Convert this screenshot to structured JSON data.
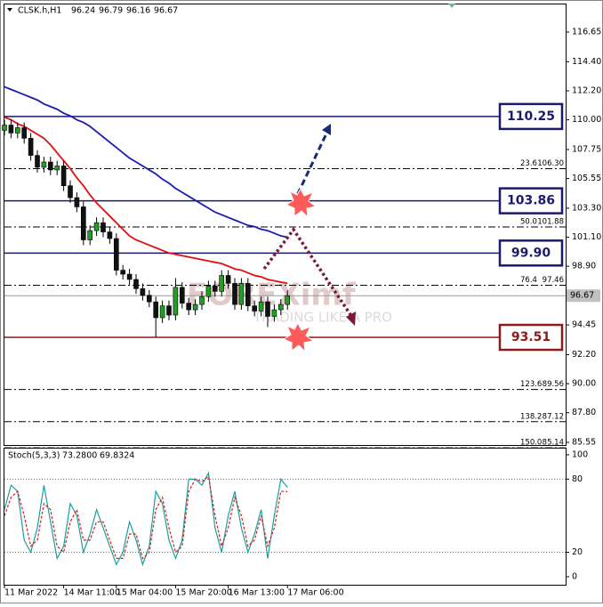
{
  "chart_data": [
    {
      "type": "candlestick",
      "symbol": "CLSK.h,H1",
      "ohlc": [
        96.24,
        96.79,
        96.16,
        96.67
      ],
      "categories": [
        "11 Mar 2022",
        null,
        null,
        null,
        null,
        null,
        null,
        null,
        null,
        "14 Mar 11:00",
        null,
        null,
        null,
        null,
        null,
        null,
        null,
        "15 Mar 04:00",
        null,
        null,
        null,
        null,
        null,
        null,
        null,
        null,
        "15 Mar 20:00",
        null,
        null,
        null,
        null,
        null,
        null,
        null,
        "16 Mar 13:00",
        null,
        null,
        null,
        null,
        null,
        null,
        null,
        null,
        "17 Mar 06:00"
      ],
      "open": [
        109.2,
        109.6,
        109.0,
        109.4,
        108.6,
        107.3,
        106.4,
        106.8,
        106.2,
        106.5,
        105.0,
        104.1,
        103.4,
        100.9,
        101.6,
        102.2,
        101.5,
        101.0,
        98.6,
        98.3,
        97.9,
        97.2,
        96.7,
        96.2,
        95.0,
        95.9,
        95.2,
        97.3,
        96.1,
        95.6,
        96.0,
        96.6,
        97.4,
        97.0,
        98.2,
        97.6,
        96.0,
        97.6,
        95.9,
        95.5,
        96.2,
        95.1,
        95.6,
        96.0
      ],
      "high": [
        110.0,
        110.0,
        109.8,
        109.8,
        109.0,
        107.7,
        107.2,
        107.2,
        106.9,
        106.9,
        105.4,
        104.5,
        103.8,
        102.0,
        102.6,
        102.6,
        101.9,
        101.4,
        99.0,
        98.7,
        98.3,
        97.6,
        97.1,
        96.6,
        96.3,
        96.3,
        98.0,
        97.7,
        96.5,
        96.4,
        97.0,
        97.8,
        97.8,
        98.6,
        98.6,
        98.0,
        98.0,
        98.0,
        96.3,
        96.6,
        96.6,
        96.0,
        96.4,
        97.07
      ],
      "low": [
        108.8,
        108.6,
        108.6,
        108.2,
        106.9,
        106.0,
        106.0,
        105.8,
        105.8,
        104.6,
        103.7,
        103.0,
        100.5,
        100.5,
        101.2,
        101.1,
        100.6,
        98.2,
        97.9,
        97.5,
        96.8,
        96.3,
        95.8,
        93.51,
        94.6,
        94.8,
        94.8,
        95.7,
        95.2,
        95.2,
        95.6,
        96.2,
        96.6,
        96.6,
        97.2,
        95.6,
        95.6,
        95.5,
        95.1,
        95.1,
        94.3,
        94.7,
        95.2,
        95.6
      ],
      "close": [
        109.6,
        109.0,
        109.4,
        108.6,
        107.3,
        106.4,
        106.8,
        106.2,
        106.5,
        105.0,
        104.1,
        103.4,
        100.9,
        101.6,
        102.2,
        101.5,
        101.0,
        98.6,
        98.3,
        97.9,
        97.2,
        96.7,
        96.2,
        95.0,
        95.9,
        95.2,
        97.3,
        96.1,
        95.6,
        96.0,
        96.6,
        97.4,
        97.0,
        98.2,
        97.6,
        96.0,
        97.6,
        95.9,
        95.5,
        96.2,
        95.1,
        95.6,
        96.0,
        96.67
      ],
      "up_color": "#22a022",
      "down_color": "#111111",
      "series": [
        {
          "color": "#1c1cb4",
          "values": [
            112.5,
            112.3,
            112.1,
            111.9,
            111.7,
            111.5,
            111.2,
            111.0,
            110.8,
            110.5,
            110.3,
            110.0,
            109.8,
            109.5,
            109.1,
            108.7,
            108.3,
            107.9,
            107.5,
            107.1,
            106.8,
            106.5,
            106.2,
            105.9,
            105.5,
            105.2,
            104.8,
            104.5,
            104.2,
            103.9,
            103.6,
            103.3,
            103.0,
            102.8,
            102.6,
            102.4,
            102.2,
            102.0,
            101.9,
            101.7,
            101.6,
            101.4,
            101.2,
            101.1
          ]
        },
        {
          "color": "#e01010",
          "values": [
            110.2,
            110.0,
            109.7,
            109.5,
            109.2,
            108.9,
            108.6,
            108.1,
            107.5,
            106.9,
            106.3,
            105.6,
            105.0,
            104.3,
            103.7,
            103.2,
            102.7,
            102.2,
            101.7,
            101.2,
            100.9,
            100.7,
            100.5,
            100.3,
            100.1,
            99.9,
            99.8,
            99.7,
            99.6,
            99.5,
            99.4,
            99.3,
            99.2,
            99.1,
            98.9,
            98.7,
            98.6,
            98.4,
            98.2,
            98.1,
            97.9,
            97.8,
            97.7,
            97.6
          ]
        }
      ],
      "ylim": [
        85.35,
        118.81
      ],
      "yticks": [
        116.65,
        {
          "value": 114.4,
          "label": "114.40"
        },
        {
          "value": 112.2,
          "label": "112.20"
        },
        {
          "value": 110,
          "label": "110.00"
        },
        107.75,
        105.55,
        {
          "value": 103.3,
          "label": "103.30"
        },
        {
          "value": 101.1,
          "label": "101.10"
        },
        {
          "value": 98.9,
          "label": "98.90"
        },
        94.45,
        {
          "value": 92.2,
          "label": "92.20"
        },
        {
          "value": 90,
          "label": "90.00"
        },
        {
          "value": 87.8,
          "label": "87.80"
        },
        85.55
      ],
      "current_price": 96.67,
      "levels": [
        {
          "value": 110.25,
          "label": "110.25",
          "color": "#1a1a6e"
        },
        {
          "value": 103.86,
          "label": "103.86",
          "color": "#1a1a6e"
        },
        {
          "value": 99.9,
          "label": "99.90",
          "color": "#1a1a6e"
        },
        {
          "value": 93.51,
          "label": "93.51",
          "color": "#8b1a1a"
        }
      ],
      "fib_levels": [
        {
          "ratio": "23.6",
          "value": 106.3,
          "label": "106.30"
        },
        {
          "ratio": "50.0",
          "value": 101.88,
          "label": "101.88"
        },
        {
          "ratio": "76.4",
          "value": 97.46,
          "label": "97.46"
        },
        {
          "ratio": "123.6",
          "value": 89.56,
          "label": "89.56"
        },
        {
          "ratio": "138.2",
          "value": 87.12,
          "label": "87.12"
        },
        {
          "ratio": "150.0",
          "value": 85.14,
          "label": "85.14"
        }
      ],
      "watermark": [
        "FOREXimf",
        "TRADING LIKE A PRO"
      ]
    },
    {
      "type": "stochastic",
      "title": "Stoch(5,3,3)",
      "readout": [
        {
          "value": 73.28,
          "label": "73.2800"
        },
        69.8324
      ],
      "series": [
        {
          "color": "#1b9e9e",
          "style": "solid",
          "values": [
            55,
            75,
            70,
            30,
            20,
            40,
            75,
            45,
            15,
            25,
            60,
            50,
            20,
            35,
            55,
            40,
            25,
            10,
            20,
            45,
            30,
            10,
            25,
            70,
            60,
            30,
            15,
            30,
            80,
            80,
            75,
            85,
            40,
            20,
            50,
            70,
            40,
            20,
            35,
            55,
            15,
            50,
            80,
            73.28
          ]
        },
        {
          "color": "#d02020",
          "style": "dashed",
          "values": [
            50,
            65,
            70,
            50,
            25,
            30,
            60,
            55,
            25,
            20,
            45,
            55,
            30,
            30,
            45,
            45,
            30,
            15,
            15,
            35,
            35,
            15,
            20,
            55,
            65,
            40,
            20,
            25,
            70,
            80,
            78,
            82,
            50,
            25,
            40,
            65,
            50,
            25,
            30,
            50,
            25,
            40,
            70,
            69.8324
          ]
        }
      ],
      "ylim": [
        -6.6,
        105.8
      ],
      "yticks": [
        0,
        20,
        80,
        100
      ],
      "levels": [
        20,
        80
      ]
    }
  ]
}
